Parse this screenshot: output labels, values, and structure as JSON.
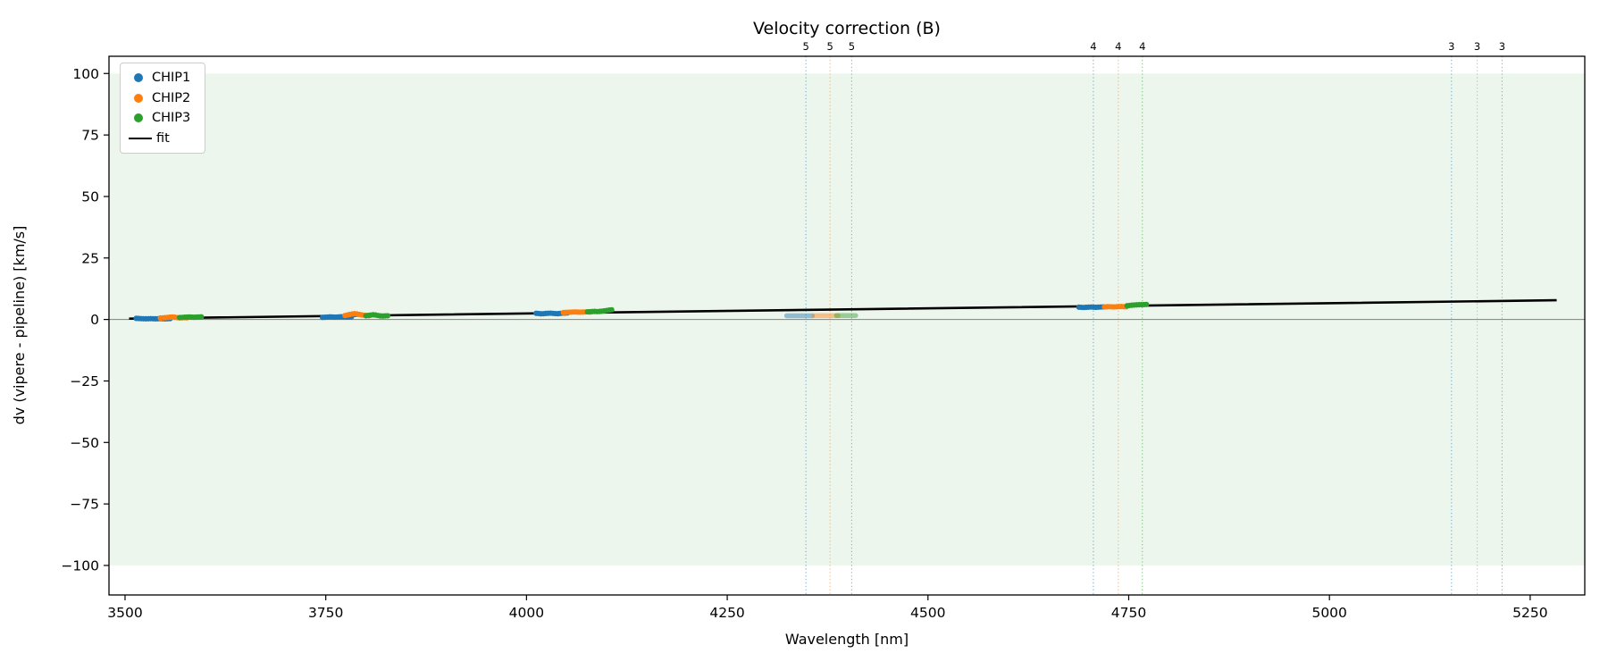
{
  "chart_data": {
    "type": "scatter",
    "title": "Velocity correction (B)",
    "xlabel": "Wavelength [nm]",
    "ylabel": "dv (vipere - pipeline) [km/s]",
    "xlim": [
      3480,
      5318
    ],
    "ylim": [
      -112,
      107
    ],
    "xticks": [
      3500,
      3750,
      4000,
      4250,
      4500,
      4750,
      5000,
      5250
    ],
    "yticks": [
      -100,
      -75,
      -50,
      -25,
      0,
      25,
      50,
      75,
      100
    ],
    "grid": false,
    "band": {
      "ymin": -100,
      "ymax": 100,
      "color": "#edf6ed"
    },
    "zero_line": {
      "y": 0,
      "color": "#7f7f7f"
    },
    "fit_line": {
      "label": "fit",
      "color": "#000000",
      "points": [
        [
          3505,
          0.35
        ],
        [
          4400,
          4.1
        ],
        [
          5283,
          7.82
        ]
      ]
    },
    "series": [
      {
        "name": "CHIP1",
        "color": "#1f77b4",
        "points": [
          [
            3514,
            0.45
          ],
          [
            3517,
            0.4
          ],
          [
            3520,
            0.34
          ],
          [
            3523,
            0.3
          ],
          [
            3526,
            0.28
          ],
          [
            3529,
            0.3
          ],
          [
            3532,
            0.33
          ],
          [
            3535,
            0.3
          ],
          [
            3538,
            0.27
          ],
          [
            3541,
            0.3
          ],
          [
            3544,
            0.34
          ],
          [
            3547,
            0.3
          ],
          [
            3550,
            0.27
          ],
          [
            3553,
            0.3
          ],
          [
            3556,
            0.36
          ],
          [
            3746,
            0.85
          ],
          [
            3749,
            0.9
          ],
          [
            3752,
            0.97
          ],
          [
            3755,
            1.03
          ],
          [
            3758,
            1.0
          ],
          [
            3761,
            0.93
          ],
          [
            3764,
            0.97
          ],
          [
            3767,
            1.05
          ],
          [
            3770,
            1.1
          ],
          [
            3773,
            1.03
          ],
          [
            3776,
            0.98
          ],
          [
            3779,
            1.04
          ],
          [
            3782,
            1.1
          ],
          [
            4012,
            2.5
          ],
          [
            4015,
            2.42
          ],
          [
            4018,
            2.3
          ],
          [
            4021,
            2.33
          ],
          [
            4024,
            2.45
          ],
          [
            4027,
            2.52
          ],
          [
            4030,
            2.56
          ],
          [
            4033,
            2.48
          ],
          [
            4036,
            2.38
          ],
          [
            4039,
            2.35
          ],
          [
            4042,
            2.46
          ],
          [
            4045,
            2.56
          ],
          [
            4048,
            2.62
          ],
          [
            4051,
            2.66
          ],
          [
            4688,
            5.0
          ],
          [
            4691,
            4.93
          ],
          [
            4694,
            4.88
          ],
          [
            4697,
            4.94
          ],
          [
            4700,
            5.0
          ],
          [
            4703,
            5.06
          ],
          [
            4706,
            5.0
          ],
          [
            4709,
            4.94
          ],
          [
            4712,
            5.0
          ],
          [
            4715,
            5.06
          ],
          [
            4718,
            5.1
          ]
        ],
        "faint_points": [
          [
            4324,
            1.5
          ],
          [
            4330,
            1.5
          ],
          [
            4336,
            1.5
          ],
          [
            4342,
            1.5
          ],
          [
            4348,
            1.5
          ],
          [
            4356,
            1.5
          ]
        ]
      },
      {
        "name": "CHIP2",
        "color": "#ff7f0e",
        "points": [
          [
            3544,
            0.6
          ],
          [
            3547,
            0.66
          ],
          [
            3550,
            0.72
          ],
          [
            3553,
            0.82
          ],
          [
            3556,
            0.95
          ],
          [
            3559,
            1.0
          ],
          [
            3562,
            0.9
          ],
          [
            3565,
            0.75
          ],
          [
            3568,
            0.66
          ],
          [
            3571,
            0.7
          ],
          [
            3574,
            0.74
          ],
          [
            3577,
            0.68
          ],
          [
            3774,
            1.6
          ],
          [
            3777,
            1.8
          ],
          [
            3780,
            2.05
          ],
          [
            3783,
            2.25
          ],
          [
            3786,
            2.35
          ],
          [
            3789,
            2.25
          ],
          [
            3792,
            2.05
          ],
          [
            3795,
            1.85
          ],
          [
            3798,
            1.7
          ],
          [
            3801,
            1.6
          ],
          [
            3804,
            1.55
          ],
          [
            4046,
            2.8
          ],
          [
            4049,
            2.86
          ],
          [
            4052,
            2.92
          ],
          [
            4055,
            2.97
          ],
          [
            4058,
            3.02
          ],
          [
            4061,
            3.06
          ],
          [
            4064,
            3.0
          ],
          [
            4067,
            2.95
          ],
          [
            4070,
            3.0
          ],
          [
            4073,
            3.06
          ],
          [
            4076,
            3.1
          ],
          [
            4079,
            3.04
          ],
          [
            4720,
            5.1
          ],
          [
            4723,
            5.16
          ],
          [
            4726,
            5.2
          ],
          [
            4729,
            5.15
          ],
          [
            4732,
            5.1
          ],
          [
            4735,
            5.16
          ],
          [
            4738,
            5.22
          ],
          [
            4741,
            5.26
          ],
          [
            4744,
            5.2
          ],
          [
            4747,
            5.15
          ]
        ],
        "faint_points": [
          [
            4358,
            1.52
          ],
          [
            4364,
            1.52
          ],
          [
            4370,
            1.52
          ],
          [
            4376,
            1.52
          ],
          [
            4382,
            1.52
          ],
          [
            4388,
            1.52
          ]
        ]
      },
      {
        "name": "CHIP3",
        "color": "#2ca02c",
        "points": [
          [
            3568,
            0.78
          ],
          [
            3571,
            0.84
          ],
          [
            3574,
            0.9
          ],
          [
            3577,
            0.96
          ],
          [
            3580,
            1.0
          ],
          [
            3583,
            0.95
          ],
          [
            3586,
            0.9
          ],
          [
            3589,
            0.95
          ],
          [
            3592,
            1.0
          ],
          [
            3595,
            1.05
          ],
          [
            3800,
            1.5
          ],
          [
            3803,
            1.62
          ],
          [
            3806,
            1.78
          ],
          [
            3809,
            1.9
          ],
          [
            3812,
            1.8
          ],
          [
            3815,
            1.6
          ],
          [
            3818,
            1.45
          ],
          [
            3821,
            1.4
          ],
          [
            3824,
            1.46
          ],
          [
            3827,
            1.52
          ],
          [
            4076,
            3.1
          ],
          [
            4079,
            3.16
          ],
          [
            4082,
            3.22
          ],
          [
            4085,
            3.26
          ],
          [
            4088,
            3.2
          ],
          [
            4091,
            3.26
          ],
          [
            4094,
            3.36
          ],
          [
            4097,
            3.5
          ],
          [
            4100,
            3.66
          ],
          [
            4103,
            3.8
          ],
          [
            4106,
            3.92
          ],
          [
            4748,
            5.6
          ],
          [
            4751,
            5.7
          ],
          [
            4754,
            5.8
          ],
          [
            4757,
            5.88
          ],
          [
            4760,
            5.95
          ],
          [
            4763,
            6.0
          ],
          [
            4766,
            6.02
          ],
          [
            4769,
            6.06
          ],
          [
            4772,
            6.1
          ]
        ],
        "faint_points": [
          [
            4386,
            1.6
          ],
          [
            4392,
            1.6
          ],
          [
            4398,
            1.6
          ],
          [
            4404,
            1.6
          ],
          [
            4410,
            1.6
          ]
        ]
      }
    ],
    "order_markers": [
      {
        "x": 4348,
        "label": "5",
        "color": "#1f77b4"
      },
      {
        "x": 4378,
        "label": "5",
        "color": "#ff7f0e"
      },
      {
        "x": 4405,
        "label": "5",
        "color": "#2ca02c"
      },
      {
        "x": 4706,
        "label": "4",
        "color": "#1f77b4"
      },
      {
        "x": 4737,
        "label": "4",
        "color": "#ff7f0e"
      },
      {
        "x": 4767,
        "label": "4",
        "color": "#2ca02c"
      },
      {
        "x": 5152,
        "label": "3",
        "color": "#1f77b4"
      },
      {
        "x": 5184,
        "label": "3",
        "color": "#ff7f0e"
      },
      {
        "x": 5215,
        "label": "3",
        "color": "#2ca02c"
      }
    ],
    "legend": {
      "position": "upper-left",
      "entries": [
        "CHIP1",
        "CHIP2",
        "CHIP3",
        "fit"
      ]
    }
  }
}
